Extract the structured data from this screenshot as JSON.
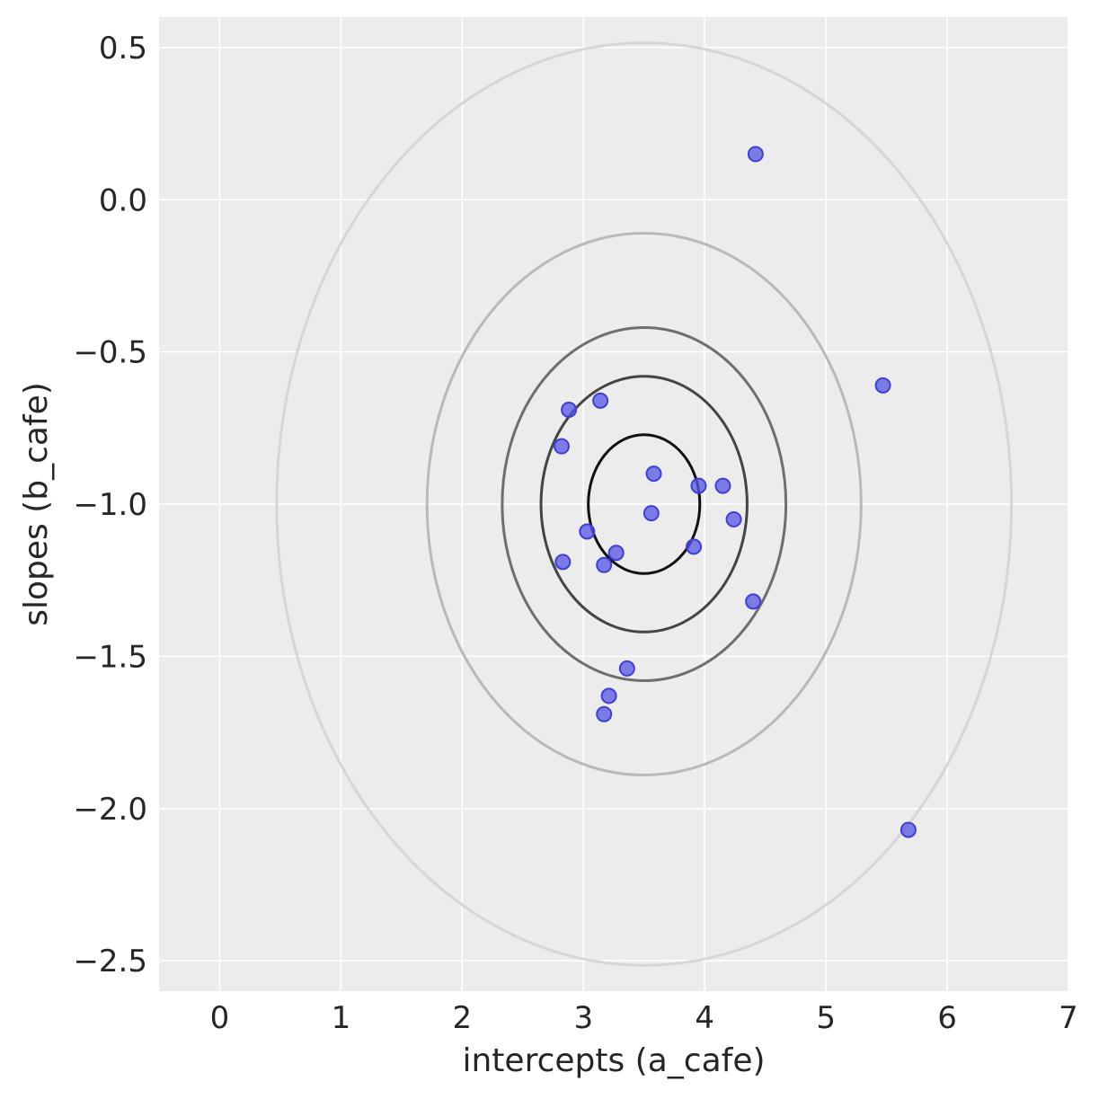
{
  "chart_data": {
    "type": "scatter",
    "title": "",
    "xlabel": "intercepts (a_cafe)",
    "ylabel": "slopes (b_cafe)",
    "xlim": [
      -0.5,
      7.0
    ],
    "ylim": [
      -2.6,
      0.6
    ],
    "xticks": [
      0,
      1,
      2,
      3,
      4,
      5,
      6,
      7
    ],
    "yticks": [
      0.5,
      0.0,
      -0.5,
      -1.0,
      -1.5,
      -2.0,
      -2.5
    ],
    "xtick_labels": [
      "0",
      "1",
      "2",
      "3",
      "4",
      "5",
      "6",
      "7"
    ],
    "ytick_labels": [
      "0.5",
      "0.0",
      "−0.5",
      "−1.0",
      "−1.5",
      "−2.0",
      "−2.5"
    ],
    "grid": true,
    "colors": {
      "background": "#ececec",
      "grid": "#ffffff",
      "points": "#5555e6",
      "points_edge": "#3f3fd6"
    },
    "ellipses": {
      "center": [
        3.5,
        -1.0
      ],
      "contours": [
        {
          "rx": 0.46,
          "ry": 0.228,
          "color": "#111111"
        },
        {
          "rx": 0.85,
          "ry": 0.42,
          "color": "#444444"
        },
        {
          "rx": 1.17,
          "ry": 0.58,
          "color": "#6e6e6e"
        },
        {
          "rx": 1.79,
          "ry": 0.89,
          "color": "#b9b9b9"
        },
        {
          "rx": 3.03,
          "ry": 1.515,
          "color": "#d6d6d6"
        }
      ]
    },
    "series": [
      {
        "x": [
          4.42,
          5.47,
          3.14,
          2.88,
          2.82,
          3.58,
          3.95,
          4.15,
          3.56,
          4.24,
          3.03,
          3.27,
          2.83,
          3.17,
          3.91,
          4.4,
          3.36,
          3.21,
          3.17,
          5.68
        ],
        "y": [
          0.15,
          -0.61,
          -0.66,
          -0.69,
          -0.81,
          -0.9,
          -0.94,
          -0.94,
          -1.03,
          -1.05,
          -1.09,
          -1.16,
          -1.19,
          -1.2,
          -1.14,
          -1.32,
          -1.54,
          -1.63,
          -1.69,
          -2.07
        ]
      }
    ]
  }
}
